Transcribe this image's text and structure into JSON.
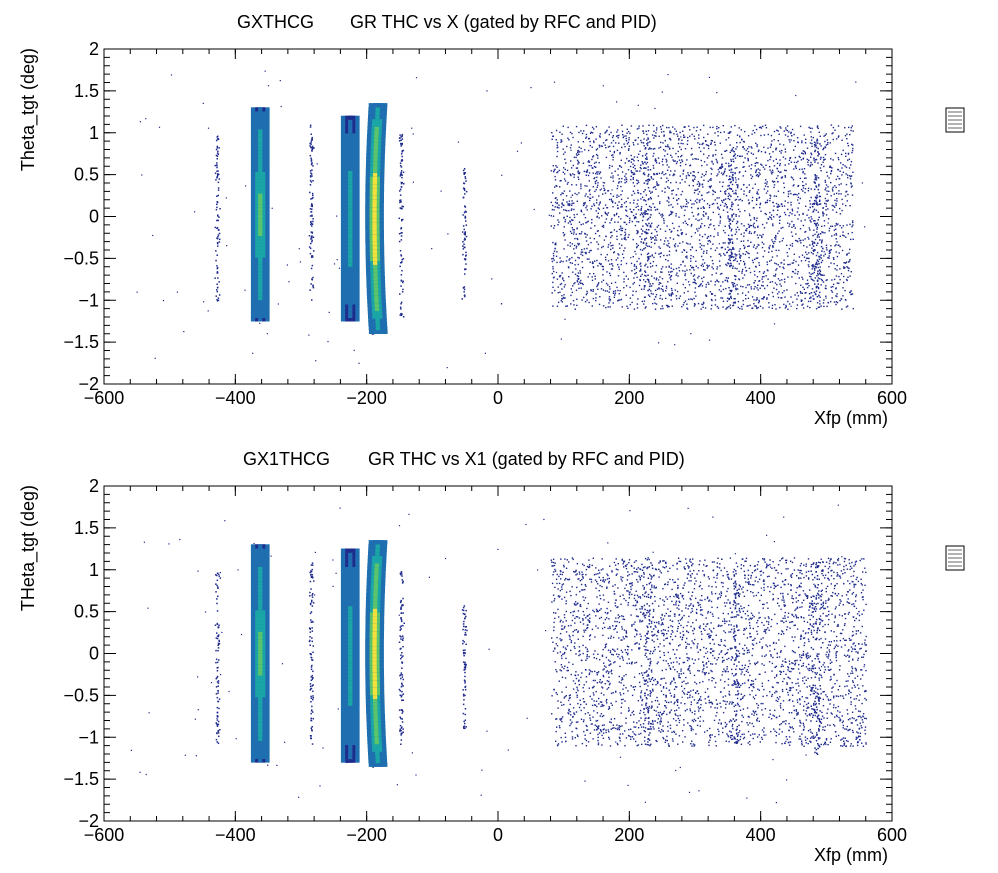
{
  "colors": {
    "low": "#1e2a8c",
    "mid_low": "#1f6fb0",
    "mid": "#1aa6a6",
    "mid_high": "#5cc46a",
    "high": "#f3e03a"
  },
  "chart_data": [
    {
      "type": "heatmap",
      "histogram_name": "GXTHCG",
      "title": "GR THC vs X (gated by RFC and PID)",
      "xlabel": "Xfp (mm)",
      "ylabel": "Theta_tgt (deg)",
      "xlim": [
        -600,
        600
      ],
      "ylim": [
        -2,
        2
      ],
      "x_ticks": [
        -600,
        -400,
        -200,
        0,
        200,
        400,
        600
      ],
      "x_tick_labels": [
        "−600",
        "−400",
        "−200",
        "0",
        "200",
        "400",
        "600"
      ],
      "y_ticks": [
        -2,
        -1.5,
        -1,
        -0.5,
        0,
        0.5,
        1,
        1.5,
        2
      ],
      "y_tick_labels": [
        "−2",
        "−1.5",
        "−1",
        "−0.5",
        "0",
        "0.5",
        "1",
        "1.5",
        "2"
      ],
      "grid": false,
      "legend": "stats box right",
      "bands": [
        {
          "x": -362,
          "width": 4,
          "y_range": [
            -1.25,
            1.3
          ],
          "intensity": 0.7
        },
        {
          "x": -225,
          "width": 4,
          "y_range": [
            -1.25,
            1.2
          ],
          "intensity": 0.55
        },
        {
          "x": -188,
          "width": 4,
          "y_range": [
            -1.4,
            1.35
          ],
          "intensity": 1.0
        },
        {
          "x": -428,
          "width": 2,
          "y_range": [
            -1.0,
            1.0
          ],
          "intensity": 0.1
        },
        {
          "x": -285,
          "width": 2,
          "y_range": [
            -1.0,
            1.1
          ],
          "intensity": 0.15
        },
        {
          "x": -148,
          "width": 2,
          "y_range": [
            -1.2,
            1.0
          ],
          "intensity": 0.15
        },
        {
          "x": -52,
          "width": 2,
          "y_range": [
            -1.0,
            0.6
          ],
          "intensity": 0.05
        },
        {
          "x": 228,
          "width": 6,
          "y_range": [
            -1.0,
            0.9
          ],
          "intensity": 0.1
        },
        {
          "x": 355,
          "width": 4,
          "y_range": [
            -1.0,
            0.8
          ],
          "intensity": 0.08
        },
        {
          "x": 483,
          "width": 6,
          "y_range": [
            -1.0,
            0.9
          ],
          "intensity": 0.2
        }
      ],
      "diffuse_region": {
        "x_range": [
          80,
          540
        ],
        "y_range": [
          -1.1,
          1.1
        ]
      }
    },
    {
      "type": "heatmap",
      "histogram_name": "GX1THCG",
      "title": "GR THC vs X1 (gated by RFC and PID)",
      "xlabel": "Xfp (mm)",
      "ylabel": "THeta_tgt (deg)",
      "xlim": [
        -600,
        600
      ],
      "ylim": [
        -2,
        2
      ],
      "x_ticks": [
        -600,
        -400,
        -200,
        0,
        200,
        400,
        600
      ],
      "x_tick_labels": [
        "−600",
        "−400",
        "−200",
        "0",
        "200",
        "400",
        "600"
      ],
      "y_ticks": [
        -2,
        -1.5,
        -1,
        -0.5,
        0,
        0.5,
        1,
        1.5,
        2
      ],
      "y_tick_labels": [
        "−2",
        "−1.5",
        "−1",
        "−0.5",
        "0",
        "0.5",
        "1",
        "1.5",
        "2"
      ],
      "grid": false,
      "legend": "stats box right",
      "bands": [
        {
          "x": -362,
          "width": 4,
          "y_range": [
            -1.3,
            1.3
          ],
          "intensity": 0.7
        },
        {
          "x": -225,
          "width": 4,
          "y_range": [
            -1.3,
            1.25
          ],
          "intensity": 0.55
        },
        {
          "x": -188,
          "width": 4,
          "y_range": [
            -1.35,
            1.35
          ],
          "intensity": 1.0
        },
        {
          "x": -428,
          "width": 2,
          "y_range": [
            -1.1,
            1.0
          ],
          "intensity": 0.1
        },
        {
          "x": -285,
          "width": 2,
          "y_range": [
            -1.1,
            1.1
          ],
          "intensity": 0.15
        },
        {
          "x": -148,
          "width": 2,
          "y_range": [
            -1.1,
            1.0
          ],
          "intensity": 0.15
        },
        {
          "x": -52,
          "width": 2,
          "y_range": [
            -0.9,
            0.6
          ],
          "intensity": 0.05
        },
        {
          "x": 228,
          "width": 6,
          "y_range": [
            -1.1,
            1.1
          ],
          "intensity": 0.15
        },
        {
          "x": 362,
          "width": 4,
          "y_range": [
            -1.1,
            1.0
          ],
          "intensity": 0.1
        },
        {
          "x": 483,
          "width": 6,
          "y_range": [
            -1.2,
            1.1
          ],
          "intensity": 0.25
        }
      ],
      "diffuse_region": {
        "x_range": [
          80,
          560
        ],
        "y_range": [
          -1.1,
          1.15
        ]
      }
    }
  ]
}
